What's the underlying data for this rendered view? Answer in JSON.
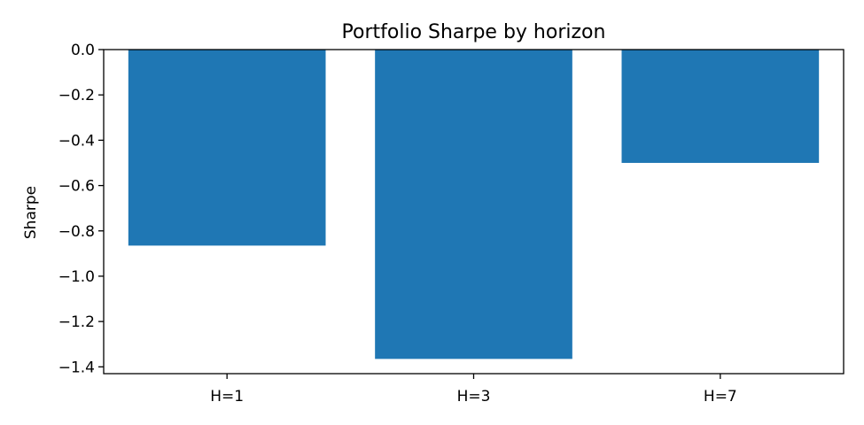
{
  "chart_data": {
    "type": "bar",
    "title": "Portfolio Sharpe by horizon",
    "xlabel": "",
    "ylabel": "Sharpe",
    "categories": [
      "H=1",
      "H=3",
      "H=7"
    ],
    "values": [
      -0.865,
      -1.365,
      -0.5
    ],
    "ylim": [
      -1.43,
      0.0
    ],
    "yticks": [
      0.0,
      -0.2,
      -0.4,
      -0.6,
      -0.8,
      -1.0,
      -1.2,
      -1.4
    ],
    "ytick_labels": [
      "0.0",
      "−0.2",
      "−0.4",
      "−0.6",
      "−0.8",
      "−1.0",
      "−1.2",
      "−1.4"
    ],
    "bar_color": "#1f77b4",
    "grid": false,
    "legend": "none"
  }
}
